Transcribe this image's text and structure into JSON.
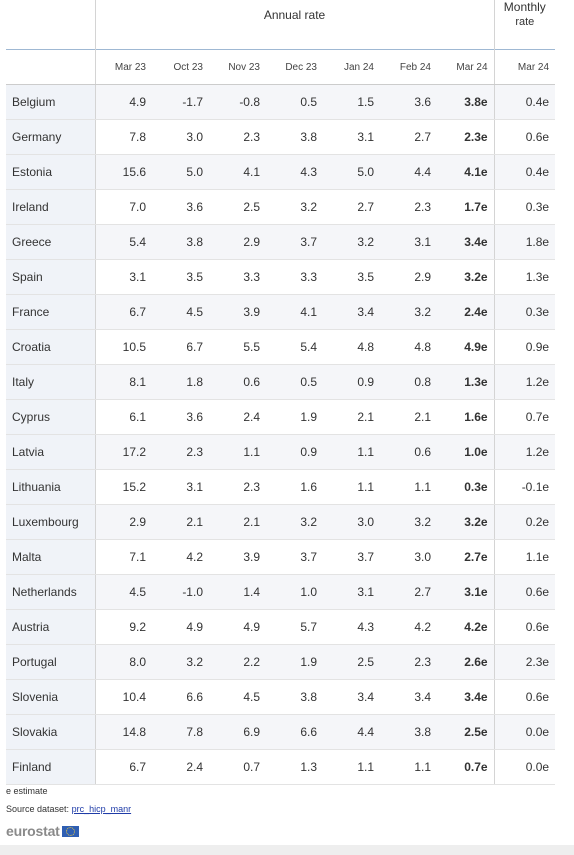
{
  "header": {
    "annual_rate": "Annual rate",
    "monthly_rate_line1": "Monthly",
    "monthly_rate_line2": "rate",
    "months": [
      "Mar 23",
      "Oct 23",
      "Nov 23",
      "Dec 23",
      "Jan 24",
      "Feb 24",
      "Mar 24",
      "Mar 24"
    ]
  },
  "rows": [
    {
      "country": "Belgium",
      "values": [
        "4.9",
        "-1.7",
        "-0.8",
        "0.5",
        "1.5",
        "3.6",
        "3.8e",
        "0.4e"
      ]
    },
    {
      "country": "Germany",
      "values": [
        "7.8",
        "3.0",
        "2.3",
        "3.8",
        "3.1",
        "2.7",
        "2.3e",
        "0.6e"
      ]
    },
    {
      "country": "Estonia",
      "values": [
        "15.6",
        "5.0",
        "4.1",
        "4.3",
        "5.0",
        "4.4",
        "4.1e",
        "0.4e"
      ]
    },
    {
      "country": "Ireland",
      "values": [
        "7.0",
        "3.6",
        "2.5",
        "3.2",
        "2.7",
        "2.3",
        "1.7e",
        "0.3e"
      ]
    },
    {
      "country": "Greece",
      "values": [
        "5.4",
        "3.8",
        "2.9",
        "3.7",
        "3.2",
        "3.1",
        "3.4e",
        "1.8e"
      ]
    },
    {
      "country": "Spain",
      "values": [
        "3.1",
        "3.5",
        "3.3",
        "3.3",
        "3.5",
        "2.9",
        "3.2e",
        "1.3e"
      ]
    },
    {
      "country": "France",
      "values": [
        "6.7",
        "4.5",
        "3.9",
        "4.1",
        "3.4",
        "3.2",
        "2.4e",
        "0.3e"
      ]
    },
    {
      "country": "Croatia",
      "values": [
        "10.5",
        "6.7",
        "5.5",
        "5.4",
        "4.8",
        "4.8",
        "4.9e",
        "0.9e"
      ]
    },
    {
      "country": "Italy",
      "values": [
        "8.1",
        "1.8",
        "0.6",
        "0.5",
        "0.9",
        "0.8",
        "1.3e",
        "1.2e"
      ]
    },
    {
      "country": "Cyprus",
      "values": [
        "6.1",
        "3.6",
        "2.4",
        "1.9",
        "2.1",
        "2.1",
        "1.6e",
        "0.7e"
      ]
    },
    {
      "country": "Latvia",
      "values": [
        "17.2",
        "2.3",
        "1.1",
        "0.9",
        "1.1",
        "0.6",
        "1.0e",
        "1.2e"
      ]
    },
    {
      "country": "Lithuania",
      "values": [
        "15.2",
        "3.1",
        "2.3",
        "1.6",
        "1.1",
        "1.1",
        "0.3e",
        "-0.1e"
      ]
    },
    {
      "country": "Luxembourg",
      "values": [
        "2.9",
        "2.1",
        "2.1",
        "3.2",
        "3.0",
        "3.2",
        "3.2e",
        "0.2e"
      ]
    },
    {
      "country": "Malta",
      "values": [
        "7.1",
        "4.2",
        "3.9",
        "3.7",
        "3.7",
        "3.0",
        "2.7e",
        "1.1e"
      ]
    },
    {
      "country": "Netherlands",
      "values": [
        "4.5",
        "-1.0",
        "1.4",
        "1.0",
        "3.1",
        "2.7",
        "3.1e",
        "0.6e"
      ]
    },
    {
      "country": "Austria",
      "values": [
        "9.2",
        "4.9",
        "4.9",
        "5.7",
        "4.3",
        "4.2",
        "4.2e",
        "0.6e"
      ]
    },
    {
      "country": "Portugal",
      "values": [
        "8.0",
        "3.2",
        "2.2",
        "1.9",
        "2.5",
        "2.3",
        "2.6e",
        "2.3e"
      ]
    },
    {
      "country": "Slovenia",
      "values": [
        "10.4",
        "6.6",
        "4.5",
        "3.8",
        "3.4",
        "3.4",
        "3.4e",
        "0.6e"
      ]
    },
    {
      "country": "Slovakia",
      "values": [
        "14.8",
        "7.8",
        "6.9",
        "6.6",
        "4.4",
        "3.8",
        "2.5e",
        "0.0e"
      ]
    },
    {
      "country": "Finland",
      "values": [
        "6.7",
        "2.4",
        "0.7",
        "1.3",
        "1.1",
        "1.1",
        "0.7e",
        "0.0e"
      ]
    }
  ],
  "footer": {
    "note": "e estimate",
    "source_label": "Source dataset:",
    "source_link": "prc_hicp_manr",
    "logo_text": "eurostat"
  },
  "colors": {
    "link": "#1f3ca8",
    "header_rule": "#9fb8d3",
    "flag_blue": "#2f5fb3",
    "flag_stars": "#f4d03f"
  }
}
